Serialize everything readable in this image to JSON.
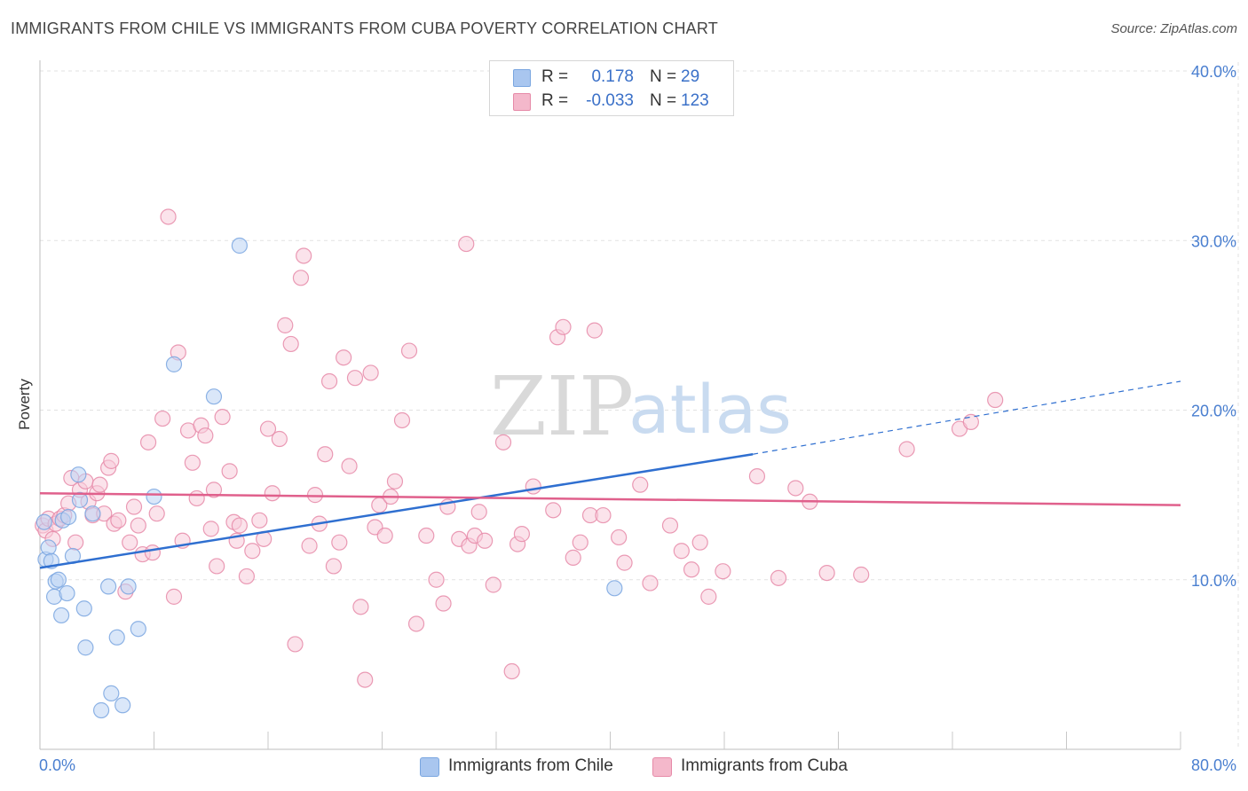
{
  "title": "IMMIGRANTS FROM CHILE VS IMMIGRANTS FROM CUBA POVERTY CORRELATION CHART",
  "source": "Source: ZipAtlas.com",
  "watermark": {
    "zip": "ZIP",
    "atlas": "atlas"
  },
  "legend_top": [
    {
      "r_label": "R =",
      "r_value": "0.178",
      "n_label": "N =",
      "n_value": "29",
      "color": "#a9c6ef"
    },
    {
      "r_label": "R =",
      "r_value": "-0.033",
      "n_label": "N =",
      "n_value": "123",
      "color": "#f4b8cb"
    }
  ],
  "legend_bottom": [
    {
      "label": "Immigrants from Chile",
      "color": "#a9c6ef"
    },
    {
      "label": "Immigrants from Cuba",
      "color": "#f4b8cb"
    }
  ],
  "chart_data": {
    "type": "scatter",
    "title": "IMMIGRANTS FROM CHILE VS IMMIGRANTS FROM CUBA POVERTY CORRELATION CHART",
    "xlabel": "",
    "ylabel": "Poverty",
    "xlim": [
      0,
      80
    ],
    "ylim": [
      0,
      40
    ],
    "x_tick_labels": [
      "0.0%",
      "80.0%"
    ],
    "y_tick_labels": [
      "10.0%",
      "20.0%",
      "30.0%",
      "40.0%"
    ],
    "y_ticks": [
      10,
      20,
      30,
      40
    ],
    "grid": true,
    "legend_placement": "top-center",
    "series": [
      {
        "name": "Immigrants from Chile",
        "color": "#7aa6e0",
        "fill": "#bcd4f4",
        "line_color": "#2f6fd0",
        "trend": {
          "x0": 0,
          "y0": 10.7,
          "x1": 50,
          "y1": 17.4,
          "x_end": 80,
          "y_end": 21.7
        },
        "points": [
          [
            0.3,
            13.4
          ],
          [
            0.4,
            11.2
          ],
          [
            0.6,
            11.9
          ],
          [
            0.8,
            11.1
          ],
          [
            1.0,
            9.0
          ],
          [
            1.1,
            9.9
          ],
          [
            1.3,
            10.0
          ],
          [
            1.5,
            7.9
          ],
          [
            1.6,
            13.5
          ],
          [
            1.9,
            9.2
          ],
          [
            2.0,
            13.7
          ],
          [
            2.3,
            11.4
          ],
          [
            2.7,
            16.2
          ],
          [
            2.8,
            14.7
          ],
          [
            3.1,
            8.3
          ],
          [
            3.2,
            6.0
          ],
          [
            3.7,
            13.9
          ],
          [
            4.3,
            2.3
          ],
          [
            4.8,
            9.6
          ],
          [
            5.0,
            3.3
          ],
          [
            5.4,
            6.6
          ],
          [
            5.8,
            2.6
          ],
          [
            6.2,
            9.6
          ],
          [
            6.9,
            7.1
          ],
          [
            8.0,
            14.9
          ],
          [
            9.4,
            22.7
          ],
          [
            12.2,
            20.8
          ],
          [
            14.0,
            29.7
          ],
          [
            40.3,
            9.5
          ]
        ]
      },
      {
        "name": "Immigrants from Cuba",
        "color": "#e68aa8",
        "fill": "#f8ccdb",
        "line_color": "#e0608c",
        "trend": {
          "x0": 0,
          "y0": 15.1,
          "x1": 80,
          "y1": 14.4
        },
        "points": [
          [
            0.2,
            13.2
          ],
          [
            0.4,
            12.9
          ],
          [
            0.6,
            13.6
          ],
          [
            0.9,
            12.4
          ],
          [
            1.1,
            13.3
          ],
          [
            1.4,
            13.6
          ],
          [
            1.7,
            13.8
          ],
          [
            2.0,
            14.5
          ],
          [
            2.2,
            16.0
          ],
          [
            2.5,
            12.2
          ],
          [
            2.8,
            15.3
          ],
          [
            3.2,
            15.8
          ],
          [
            3.4,
            14.6
          ],
          [
            3.7,
            13.8
          ],
          [
            4.0,
            15.1
          ],
          [
            4.2,
            15.6
          ],
          [
            4.5,
            13.9
          ],
          [
            4.8,
            16.6
          ],
          [
            5.0,
            17.0
          ],
          [
            5.2,
            13.3
          ],
          [
            5.5,
            13.5
          ],
          [
            6.0,
            9.3
          ],
          [
            6.3,
            12.2
          ],
          [
            6.6,
            14.3
          ],
          [
            6.9,
            13.2
          ],
          [
            7.2,
            11.5
          ],
          [
            7.6,
            18.1
          ],
          [
            7.9,
            11.6
          ],
          [
            8.2,
            13.9
          ],
          [
            8.6,
            19.5
          ],
          [
            9.0,
            31.4
          ],
          [
            9.4,
            9.0
          ],
          [
            9.7,
            23.4
          ],
          [
            10.0,
            12.3
          ],
          [
            10.4,
            18.8
          ],
          [
            10.7,
            16.9
          ],
          [
            11.0,
            14.8
          ],
          [
            11.3,
            19.1
          ],
          [
            11.6,
            18.5
          ],
          [
            12.0,
            13.0
          ],
          [
            12.2,
            15.3
          ],
          [
            12.4,
            10.8
          ],
          [
            12.8,
            19.6
          ],
          [
            13.3,
            16.4
          ],
          [
            13.6,
            13.4
          ],
          [
            13.8,
            12.3
          ],
          [
            14.0,
            13.2
          ],
          [
            14.5,
            10.2
          ],
          [
            14.9,
            11.7
          ],
          [
            15.4,
            13.5
          ],
          [
            15.7,
            12.4
          ],
          [
            16.0,
            18.9
          ],
          [
            16.3,
            15.1
          ],
          [
            16.8,
            18.3
          ],
          [
            17.2,
            25.0
          ],
          [
            17.6,
            23.9
          ],
          [
            17.9,
            6.2
          ],
          [
            18.3,
            27.8
          ],
          [
            18.5,
            29.1
          ],
          [
            18.9,
            12.0
          ],
          [
            19.3,
            15.0
          ],
          [
            19.6,
            13.3
          ],
          [
            20.0,
            17.4
          ],
          [
            20.3,
            21.7
          ],
          [
            20.6,
            10.8
          ],
          [
            21.0,
            12.2
          ],
          [
            21.3,
            23.1
          ],
          [
            21.7,
            16.7
          ],
          [
            22.1,
            21.9
          ],
          [
            22.5,
            8.4
          ],
          [
            22.8,
            4.1
          ],
          [
            23.2,
            22.2
          ],
          [
            23.5,
            13.1
          ],
          [
            23.8,
            14.4
          ],
          [
            24.2,
            12.6
          ],
          [
            24.6,
            14.9
          ],
          [
            24.9,
            15.8
          ],
          [
            25.4,
            19.4
          ],
          [
            25.9,
            23.5
          ],
          [
            26.4,
            7.4
          ],
          [
            27.1,
            12.6
          ],
          [
            27.8,
            10.0
          ],
          [
            28.3,
            8.6
          ],
          [
            28.6,
            14.3
          ],
          [
            29.4,
            12.4
          ],
          [
            30.1,
            12.0
          ],
          [
            30.5,
            12.6
          ],
          [
            30.8,
            14.0
          ],
          [
            31.2,
            12.3
          ],
          [
            31.8,
            9.7
          ],
          [
            32.5,
            18.1
          ],
          [
            33.1,
            4.6
          ],
          [
            33.5,
            12.1
          ],
          [
            33.8,
            12.7
          ],
          [
            34.6,
            15.5
          ],
          [
            36.0,
            14.1
          ],
          [
            36.3,
            24.3
          ],
          [
            36.7,
            24.9
          ],
          [
            37.4,
            11.3
          ],
          [
            37.9,
            12.2
          ],
          [
            38.6,
            13.8
          ],
          [
            38.9,
            24.7
          ],
          [
            39.5,
            13.8
          ],
          [
            40.6,
            12.5
          ],
          [
            41.0,
            11.0
          ],
          [
            42.1,
            15.6
          ],
          [
            42.8,
            9.8
          ],
          [
            44.2,
            13.2
          ],
          [
            45.0,
            11.7
          ],
          [
            45.7,
            10.6
          ],
          [
            46.3,
            12.2
          ],
          [
            46.9,
            9.0
          ],
          [
            47.9,
            10.5
          ],
          [
            50.3,
            16.1
          ],
          [
            51.8,
            10.1
          ],
          [
            53.0,
            15.4
          ],
          [
            54.0,
            14.6
          ],
          [
            55.2,
            10.4
          ],
          [
            57.6,
            10.3
          ],
          [
            60.8,
            17.7
          ],
          [
            64.5,
            18.9
          ],
          [
            65.3,
            19.3
          ],
          [
            67.0,
            20.6
          ],
          [
            29.9,
            29.8
          ]
        ]
      }
    ]
  }
}
